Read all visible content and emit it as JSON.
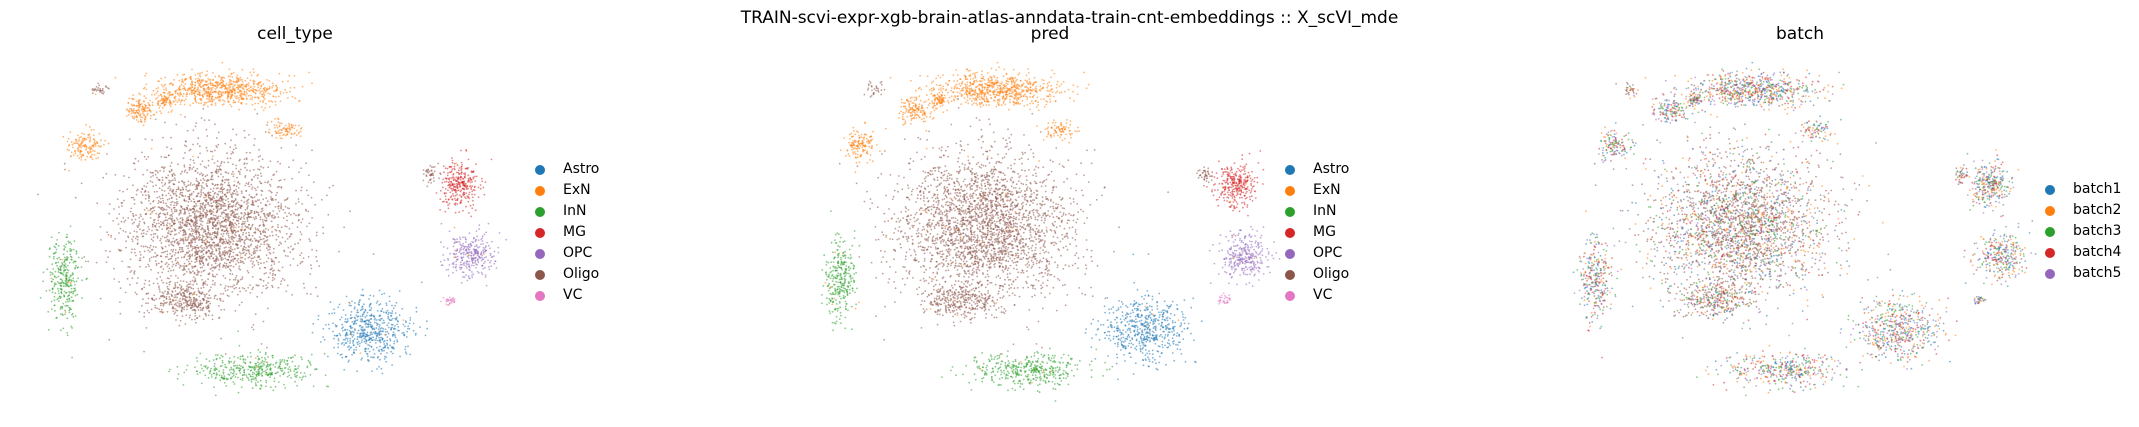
{
  "suptitle": "TRAIN-scvi-expr-xgb-brain-atlas-anndata-train-cnt-embeddings :: X_scVI_mde",
  "chart_data": [
    {
      "type": "scatter",
      "title": "cell_type",
      "xlabel": "",
      "ylabel": "",
      "grid": false,
      "axes": "off",
      "legend_placement": "right",
      "legend": [
        {
          "label": "Astro",
          "color": "#1f77b4"
        },
        {
          "label": "ExN",
          "color": "#ff7f0e"
        },
        {
          "label": "InN",
          "color": "#2ca02c"
        },
        {
          "label": "MG",
          "color": "#d62728"
        },
        {
          "label": "OPC",
          "color": "#9467bd"
        },
        {
          "label": "Oligo",
          "color": "#8c564b"
        },
        {
          "label": "VC",
          "color": "#e377c2"
        }
      ]
    },
    {
      "type": "scatter",
      "title": "pred",
      "xlabel": "",
      "ylabel": "",
      "grid": false,
      "axes": "off",
      "legend_placement": "right",
      "legend": [
        {
          "label": "Astro",
          "color": "#1f77b4"
        },
        {
          "label": "ExN",
          "color": "#ff7f0e"
        },
        {
          "label": "InN",
          "color": "#2ca02c"
        },
        {
          "label": "MG",
          "color": "#d62728"
        },
        {
          "label": "OPC",
          "color": "#9467bd"
        },
        {
          "label": "Oligo",
          "color": "#8c564b"
        },
        {
          "label": "VC",
          "color": "#e377c2"
        }
      ]
    },
    {
      "type": "scatter",
      "title": "batch",
      "xlabel": "",
      "ylabel": "",
      "grid": false,
      "axes": "off",
      "legend_placement": "right",
      "legend": [
        {
          "label": "batch1",
          "color": "#1f77b4"
        },
        {
          "label": "batch2",
          "color": "#ff7f0e"
        },
        {
          "label": "batch3",
          "color": "#2ca02c"
        },
        {
          "label": "batch4",
          "color": "#d62728"
        },
        {
          "label": "batch5",
          "color": "#9467bd"
        }
      ]
    }
  ]
}
